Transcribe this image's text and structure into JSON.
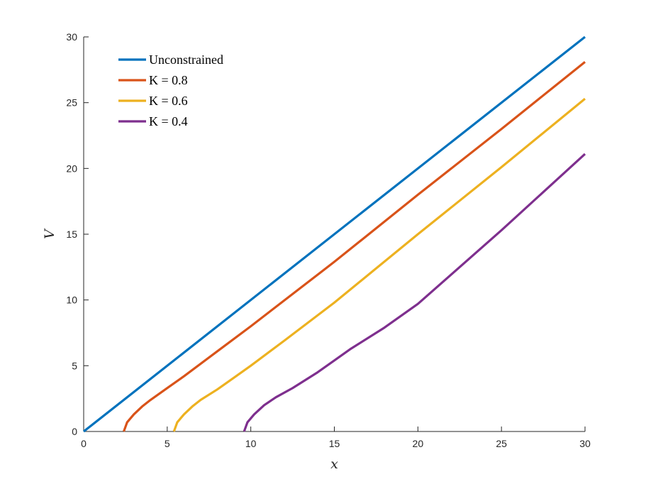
{
  "chart_data": {
    "type": "line",
    "title": "",
    "xlabel": "x",
    "ylabel": "V",
    "xlim": [
      0,
      30
    ],
    "ylim": [
      0,
      30
    ],
    "xticks": [
      0,
      5,
      10,
      15,
      20,
      25,
      30
    ],
    "yticks": [
      0,
      5,
      10,
      15,
      20,
      25,
      30
    ],
    "grid": false,
    "legend_position": "top-left",
    "series": [
      {
        "name": "Unconstrained",
        "color": "#0072BD",
        "points": [
          [
            0,
            0
          ],
          [
            30,
            30
          ]
        ]
      },
      {
        "name": "K = 0.8",
        "color": "#D95319",
        "points": [
          [
            2.4,
            0
          ],
          [
            2.6,
            0.7
          ],
          [
            3.0,
            1.3
          ],
          [
            3.5,
            1.9
          ],
          [
            4.0,
            2.4
          ],
          [
            5.0,
            3.3
          ],
          [
            6.0,
            4.2
          ],
          [
            8.0,
            6.1
          ],
          [
            10.0,
            8.0
          ],
          [
            15.0,
            12.9
          ],
          [
            20.0,
            18.0
          ],
          [
            25.0,
            23.0
          ],
          [
            30.0,
            28.1
          ]
        ]
      },
      {
        "name": "K = 0.6",
        "color": "#EDB120",
        "points": [
          [
            5.4,
            0
          ],
          [
            5.6,
            0.7
          ],
          [
            6.0,
            1.3
          ],
          [
            6.5,
            1.9
          ],
          [
            7.0,
            2.4
          ],
          [
            8.0,
            3.2
          ],
          [
            9.0,
            4.1
          ],
          [
            10.0,
            5.0
          ],
          [
            12.0,
            6.9
          ],
          [
            15.0,
            9.8
          ],
          [
            20.0,
            15.0
          ],
          [
            25.0,
            20.1
          ],
          [
            30.0,
            25.3
          ]
        ]
      },
      {
        "name": "K = 0.4",
        "color": "#7E2F8E",
        "points": [
          [
            9.6,
            0
          ],
          [
            9.8,
            0.7
          ],
          [
            10.2,
            1.3
          ],
          [
            10.8,
            2.0
          ],
          [
            11.5,
            2.6
          ],
          [
            12.5,
            3.3
          ],
          [
            14.0,
            4.5
          ],
          [
            16.0,
            6.3
          ],
          [
            18.0,
            7.9
          ],
          [
            20.0,
            9.7
          ],
          [
            25.0,
            15.3
          ],
          [
            30.0,
            21.1
          ]
        ]
      }
    ]
  }
}
